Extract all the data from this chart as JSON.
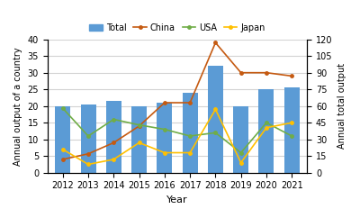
{
  "years": [
    2012,
    2013,
    2014,
    2015,
    2016,
    2017,
    2018,
    2019,
    2020,
    2021
  ],
  "total_bars": [
    20,
    20.5,
    21.5,
    20,
    21,
    24,
    32,
    20,
    25,
    25.5
  ],
  "china": [
    12,
    17,
    27,
    42,
    63,
    63,
    117,
    90,
    90,
    87
  ],
  "usa": [
    58,
    33,
    48,
    43,
    39,
    33,
    36,
    18,
    45,
    33
  ],
  "japan": [
    21,
    7.5,
    12,
    27,
    18,
    18,
    57,
    9,
    40.5,
    45
  ],
  "bar_color": "#5b9bd5",
  "china_color": "#c55a11",
  "usa_color": "#70ad47",
  "japan_color": "#ffc000",
  "ylim_left": [
    0,
    40
  ],
  "ylim_right": [
    0,
    120
  ],
  "yticks_left": [
    0,
    5,
    10,
    15,
    20,
    25,
    30,
    35,
    40
  ],
  "yticks_right": [
    0,
    15,
    30,
    45,
    60,
    75,
    90,
    105,
    120
  ],
  "xlabel": "Year",
  "ylabel_left": "Annual output of a country",
  "ylabel_right": "Annual total output",
  "legend_labels": [
    "Total",
    "China",
    "USA",
    "Japan"
  ],
  "grid_color": "#d3d3d3"
}
